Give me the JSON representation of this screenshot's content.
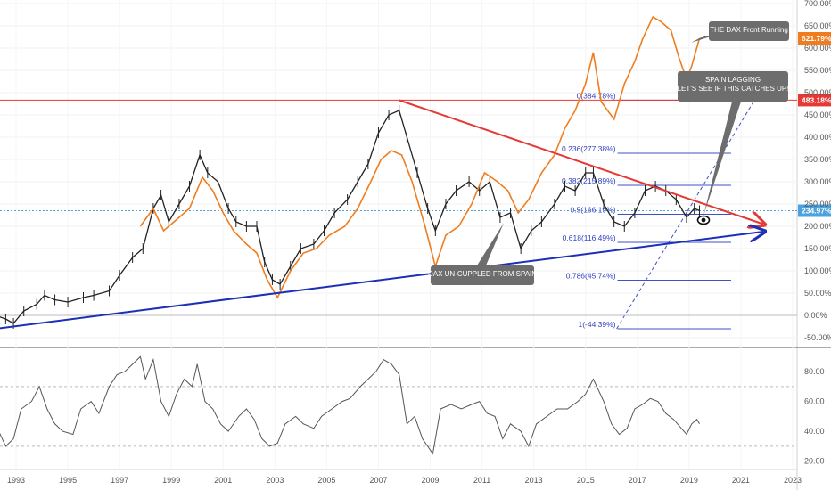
{
  "chart_data": [
    {
      "type": "candlestick-line",
      "title": "",
      "x_tick_labels": [
        "1993",
        "1995",
        "1997",
        "1999",
        "2001",
        "2003",
        "2005",
        "2007",
        "2009",
        "2011",
        "2013",
        "2015",
        "2017",
        "2019",
        "2021",
        "2023"
      ],
      "x_range": [
        1992.2,
        2023.0
      ],
      "y_tick_labels": [
        "700.00%",
        "650.00%",
        "600.00%",
        "550.00%",
        "500.00%",
        "450.00%",
        "400.00%",
        "350.00%",
        "300.00%",
        "250.00%",
        "200.00%",
        "150.00%",
        "100.00%",
        "50.00%",
        "0.00%",
        "-50.00%"
      ],
      "y_ticks": [
        700,
        650,
        600,
        550,
        500,
        450,
        400,
        350,
        300,
        250,
        200,
        150,
        100,
        50,
        0,
        -50
      ],
      "y_range": [
        -80,
        710
      ],
      "series": [
        {
          "label_tag": "234.97%",
          "color": "#222222",
          "points": [
            [
              1992.2,
              0
            ],
            [
              1992.6,
              -8
            ],
            [
              1992.9,
              -18
            ],
            [
              1993.3,
              10
            ],
            [
              1993.8,
              25
            ],
            [
              1994.1,
              45
            ],
            [
              1994.5,
              35
            ],
            [
              1995.0,
              30
            ],
            [
              1995.6,
              40
            ],
            [
              1996.0,
              45
            ],
            [
              1996.6,
              55
            ],
            [
              1997.0,
              90
            ],
            [
              1997.5,
              130
            ],
            [
              1997.9,
              150
            ],
            [
              1998.3,
              240
            ],
            [
              1998.6,
              270
            ],
            [
              1998.9,
              210
            ],
            [
              1999.3,
              250
            ],
            [
              1999.7,
              290
            ],
            [
              2000.1,
              360
            ],
            [
              2000.4,
              320
            ],
            [
              2000.8,
              300
            ],
            [
              2001.2,
              240
            ],
            [
              2001.5,
              210
            ],
            [
              2001.9,
              200
            ],
            [
              2002.3,
              200
            ],
            [
              2002.6,
              120
            ],
            [
              2002.9,
              80
            ],
            [
              2003.2,
              70
            ],
            [
              2003.6,
              110
            ],
            [
              2004.0,
              150
            ],
            [
              2004.5,
              160
            ],
            [
              2004.9,
              190
            ],
            [
              2005.3,
              230
            ],
            [
              2005.8,
              260
            ],
            [
              2006.2,
              300
            ],
            [
              2006.6,
              340
            ],
            [
              2007.0,
              410
            ],
            [
              2007.4,
              450
            ],
            [
              2007.8,
              460
            ],
            [
              2008.1,
              400
            ],
            [
              2008.5,
              320
            ],
            [
              2008.9,
              240
            ],
            [
              2009.2,
              190
            ],
            [
              2009.6,
              250
            ],
            [
              2010.0,
              280
            ],
            [
              2010.5,
              300
            ],
            [
              2010.9,
              280
            ],
            [
              2011.3,
              300
            ],
            [
              2011.7,
              220
            ],
            [
              2012.1,
              230
            ],
            [
              2012.5,
              150
            ],
            [
              2012.9,
              190
            ],
            [
              2013.3,
              210
            ],
            [
              2013.8,
              250
            ],
            [
              2014.2,
              290
            ],
            [
              2014.6,
              280
            ],
            [
              2015.0,
              320
            ],
            [
              2015.3,
              320
            ],
            [
              2015.7,
              250
            ],
            [
              2016.1,
              210
            ],
            [
              2016.5,
              200
            ],
            [
              2016.9,
              230
            ],
            [
              2017.3,
              280
            ],
            [
              2017.7,
              290
            ],
            [
              2018.1,
              280
            ],
            [
              2018.5,
              260
            ],
            [
              2018.9,
              220
            ],
            [
              2019.2,
              240
            ],
            [
              2019.4,
              235
            ]
          ]
        },
        {
          "label_tag": "621.79%",
          "color": "#ef7d1f",
          "points": [
            [
              1997.8,
              200
            ],
            [
              1998.3,
              240
            ],
            [
              1998.7,
              190
            ],
            [
              1999.2,
              215
            ],
            [
              1999.7,
              240
            ],
            [
              2000.2,
              310
            ],
            [
              2000.6,
              280
            ],
            [
              2001.0,
              230
            ],
            [
              2001.4,
              190
            ],
            [
              2001.9,
              160
            ],
            [
              2002.3,
              140
            ],
            [
              2002.7,
              80
            ],
            [
              2003.1,
              40
            ],
            [
              2003.6,
              100
            ],
            [
              2004.1,
              140
            ],
            [
              2004.6,
              150
            ],
            [
              2005.1,
              180
            ],
            [
              2005.7,
              200
            ],
            [
              2006.2,
              240
            ],
            [
              2006.7,
              300
            ],
            [
              2007.1,
              350
            ],
            [
              2007.5,
              370
            ],
            [
              2007.9,
              360
            ],
            [
              2008.3,
              300
            ],
            [
              2008.8,
              200
            ],
            [
              2009.2,
              110
            ],
            [
              2009.6,
              180
            ],
            [
              2010.1,
              200
            ],
            [
              2010.6,
              250
            ],
            [
              2011.1,
              320
            ],
            [
              2011.6,
              300
            ],
            [
              2012.0,
              280
            ],
            [
              2012.4,
              230
            ],
            [
              2012.8,
              260
            ],
            [
              2013.3,
              320
            ],
            [
              2013.8,
              360
            ],
            [
              2014.2,
              420
            ],
            [
              2014.6,
              460
            ],
            [
              2015.0,
              520
            ],
            [
              2015.3,
              590
            ],
            [
              2015.6,
              480
            ],
            [
              2016.1,
              440
            ],
            [
              2016.5,
              520
            ],
            [
              2016.9,
              570
            ],
            [
              2017.2,
              620
            ],
            [
              2017.6,
              670
            ],
            [
              2017.9,
              660
            ],
            [
              2018.3,
              640
            ],
            [
              2018.6,
              580
            ],
            [
              2018.9,
              530
            ],
            [
              2019.1,
              560
            ],
            [
              2019.4,
              622
            ]
          ]
        }
      ],
      "horizontal_lines": [
        {
          "value": 483.18,
          "color": "#e53935",
          "label_tag": "483.18%"
        },
        {
          "value": 234.97,
          "color": "#4aa3df",
          "dotted": true
        },
        {
          "value": 0,
          "color": "#bbbbbb"
        }
      ],
      "fibonacci": {
        "levels": [
          {
            "value": 483.18,
            "label": "0(384.78%)"
          },
          {
            "value": 364.0,
            "label": "0.236(277.38%)"
          },
          {
            "value": 292.0,
            "label": "0.382(215.89%)"
          },
          {
            "value": 227.0,
            "label": "0.5(166.19%)"
          },
          {
            "value": 164.0,
            "label": "0.618(116.49%)"
          },
          {
            "value": 79.0,
            "label": "0.786(45.74%)"
          },
          {
            "value": -30.0,
            "label": "1(-44.39%)"
          }
        ],
        "x_start": 2015.2,
        "x_end": 2022.0
      },
      "trendlines": [
        {
          "color": "#e53935",
          "from": [
            2007.8,
            483
          ],
          "to": [
            2022.0,
            205
          ]
        },
        {
          "color": "#1c2fb8",
          "from": [
            1992.2,
            -30
          ],
          "to": [
            2022.0,
            188
          ]
        }
      ],
      "annotations": [
        {
          "text": "THE DAX Front Running"
        },
        {
          "text": "SPAIN LAGGING\n LET'S SEE IF THIS CATCHES UP!"
        },
        {
          "text": "DAX UN-CUPPLED FROM SPAIN"
        }
      ]
    },
    {
      "type": "line",
      "title": "",
      "y_tick_labels": [
        "80.00",
        "60.00",
        "40.00",
        "20.00"
      ],
      "y_ticks": [
        80,
        60,
        40,
        20
      ],
      "y_range": [
        15,
        95
      ],
      "band_lines": [
        70,
        30
      ],
      "series": [
        {
          "color": "#555555",
          "values": [
            [
              1992.2,
              45
            ],
            [
              1992.6,
              30
            ],
            [
              1992.9,
              35
            ],
            [
              1993.2,
              55
            ],
            [
              1993.6,
              60
            ],
            [
              1993.9,
              70
            ],
            [
              1994.2,
              55
            ],
            [
              1994.5,
              45
            ],
            [
              1994.8,
              40
            ],
            [
              1995.2,
              38
            ],
            [
              1995.5,
              55
            ],
            [
              1995.9,
              60
            ],
            [
              1996.2,
              52
            ],
            [
              1996.6,
              70
            ],
            [
              1996.9,
              78
            ],
            [
              1997.2,
              80
            ],
            [
              1997.5,
              85
            ],
            [
              1997.8,
              90
            ],
            [
              1998.0,
              75
            ],
            [
              1998.3,
              88
            ],
            [
              1998.6,
              60
            ],
            [
              1998.9,
              50
            ],
            [
              1999.2,
              65
            ],
            [
              1999.5,
              75
            ],
            [
              1999.8,
              70
            ],
            [
              2000.0,
              85
            ],
            [
              2000.3,
              60
            ],
            [
              2000.6,
              55
            ],
            [
              2000.9,
              45
            ],
            [
              2001.2,
              40
            ],
            [
              2001.6,
              50
            ],
            [
              2001.9,
              55
            ],
            [
              2002.2,
              48
            ],
            [
              2002.5,
              35
            ],
            [
              2002.8,
              30
            ],
            [
              2003.1,
              32
            ],
            [
              2003.4,
              45
            ],
            [
              2003.8,
              50
            ],
            [
              2004.1,
              45
            ],
            [
              2004.5,
              42
            ],
            [
              2004.8,
              50
            ],
            [
              2005.2,
              55
            ],
            [
              2005.6,
              60
            ],
            [
              2005.9,
              62
            ],
            [
              2006.3,
              70
            ],
            [
              2006.6,
              75
            ],
            [
              2006.9,
              80
            ],
            [
              2007.2,
              88
            ],
            [
              2007.5,
              85
            ],
            [
              2007.8,
              78
            ],
            [
              2008.1,
              45
            ],
            [
              2008.4,
              50
            ],
            [
              2008.7,
              35
            ],
            [
              2008.9,
              30
            ],
            [
              2009.1,
              25
            ],
            [
              2009.4,
              55
            ],
            [
              2009.8,
              58
            ],
            [
              2010.2,
              55
            ],
            [
              2010.6,
              58
            ],
            [
              2010.9,
              60
            ],
            [
              2011.2,
              52
            ],
            [
              2011.5,
              50
            ],
            [
              2011.8,
              35
            ],
            [
              2012.1,
              45
            ],
            [
              2012.5,
              40
            ],
            [
              2012.8,
              30
            ],
            [
              2013.1,
              45
            ],
            [
              2013.5,
              50
            ],
            [
              2013.9,
              55
            ],
            [
              2014.3,
              55
            ],
            [
              2014.7,
              60
            ],
            [
              2015.0,
              65
            ],
            [
              2015.3,
              75
            ],
            [
              2015.7,
              60
            ],
            [
              2016.0,
              45
            ],
            [
              2016.3,
              38
            ],
            [
              2016.6,
              42
            ],
            [
              2016.9,
              55
            ],
            [
              2017.2,
              58
            ],
            [
              2017.5,
              62
            ],
            [
              2017.8,
              60
            ],
            [
              2018.1,
              52
            ],
            [
              2018.4,
              48
            ],
            [
              2018.7,
              42
            ],
            [
              2018.9,
              38
            ],
            [
              2019.1,
              45
            ],
            [
              2019.3,
              48
            ],
            [
              2019.4,
              45
            ]
          ]
        }
      ]
    }
  ]
}
